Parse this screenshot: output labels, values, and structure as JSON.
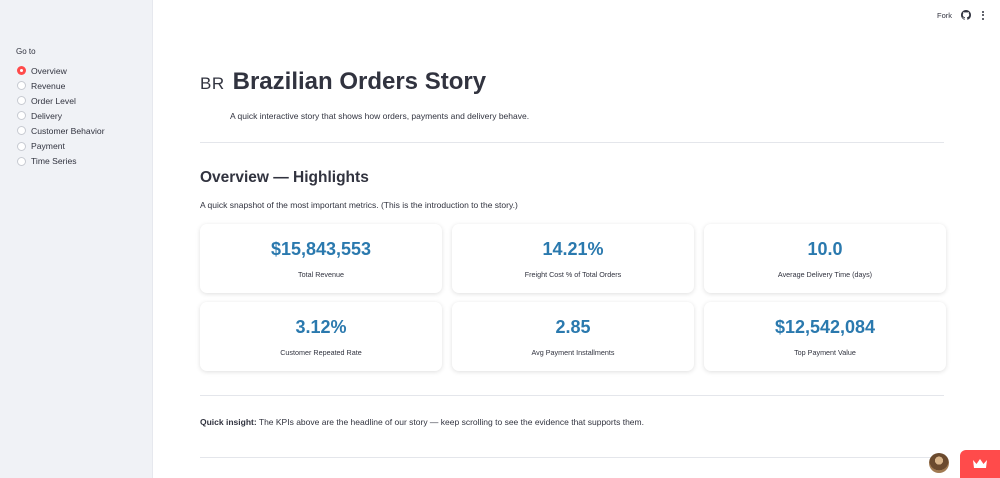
{
  "sidebar": {
    "goto_label": "Go to",
    "items": [
      {
        "label": "Overview",
        "selected": true
      },
      {
        "label": "Revenue",
        "selected": false
      },
      {
        "label": "Order Level",
        "selected": false
      },
      {
        "label": "Delivery",
        "selected": false
      },
      {
        "label": "Customer Behavior",
        "selected": false
      },
      {
        "label": "Payment",
        "selected": false
      },
      {
        "label": "Time Series",
        "selected": false
      }
    ]
  },
  "header": {
    "fork_label": "Fork",
    "github_icon": "github-icon",
    "menu_icon": "kebab-menu-icon"
  },
  "main": {
    "badge": "BR",
    "title": "Brazilian Orders Story",
    "subtitle": "A quick interactive story that shows how orders, payments and delivery behave.",
    "section_title": "Overview — Highlights",
    "section_sub": "A quick snapshot of the most important metrics. (This is the introduction to the story.)",
    "kpis": [
      {
        "value": "$15,843,553",
        "label": "Total Revenue"
      },
      {
        "value": "14.21%",
        "label": "Freight Cost % of Total Orders"
      },
      {
        "value": "10.0",
        "label": "Average Delivery Time (days)"
      },
      {
        "value": "3.12%",
        "label": "Customer Repeated Rate"
      },
      {
        "value": "2.85",
        "label": "Avg Payment Installments"
      },
      {
        "value": "$12,542,084",
        "label": "Top Payment Value"
      }
    ],
    "insight_bold": "Quick insight:",
    "insight_text": " The KPIs above are the headline of our story — keep scrolling to see the evidence that supports them."
  },
  "colors": {
    "accent": "#ff4b4b",
    "kpi_value": "#2a79ae",
    "sidebar_bg": "#f0f2f6"
  }
}
